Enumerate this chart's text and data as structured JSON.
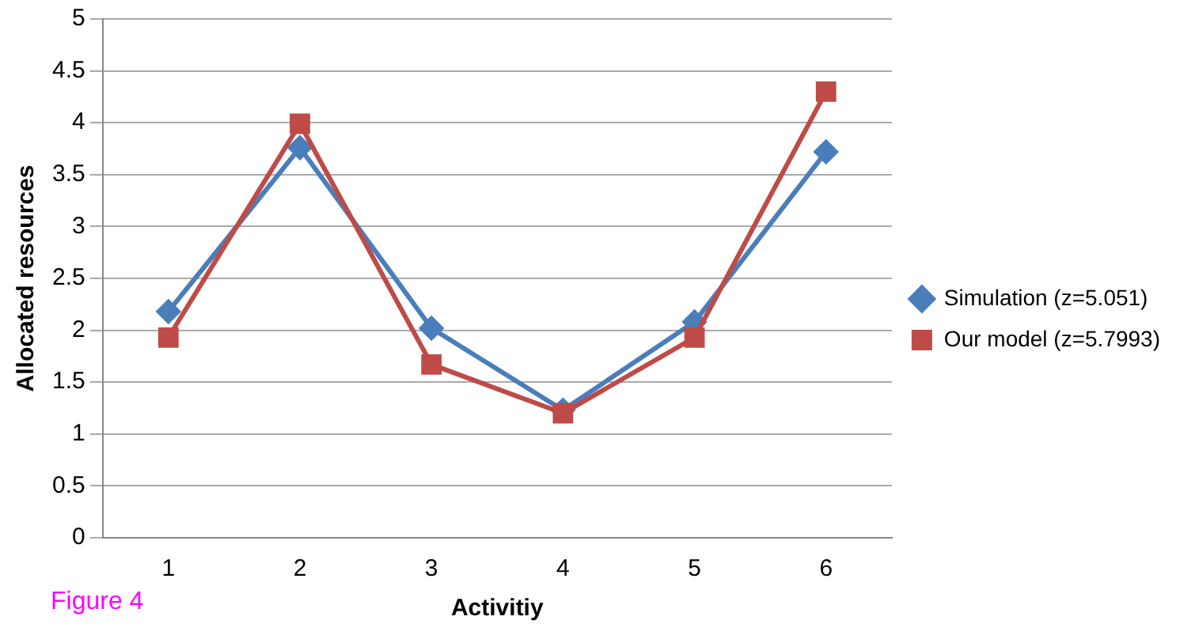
{
  "chart_data": {
    "type": "line",
    "xlabel": "Activitiy",
    "ylabel": "Allocated resources",
    "categories": [
      "1",
      "2",
      "3",
      "4",
      "5",
      "6"
    ],
    "series": [
      {
        "name": "Simulation (z=5.051)",
        "color": "#4a7ebb",
        "marker": "diamond",
        "values": [
          2.18,
          3.76,
          2.02,
          1.23,
          2.08,
          3.72
        ]
      },
      {
        "name": "Our model (z=5.7993)",
        "color": "#be4b48",
        "marker": "square",
        "values": [
          1.93,
          3.99,
          1.67,
          1.2,
          1.93,
          4.3
        ]
      }
    ],
    "ylim": [
      0,
      5
    ],
    "yticks": [
      0,
      0.5,
      1,
      1.5,
      2,
      2.5,
      3,
      3.5,
      4,
      4.5,
      5
    ],
    "grid": "y",
    "legend": "right",
    "line_style": "solid",
    "annotations": [
      "Figure 4"
    ]
  }
}
